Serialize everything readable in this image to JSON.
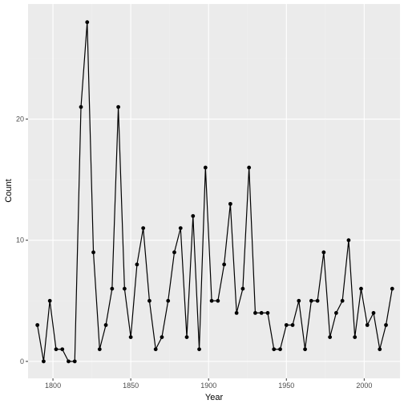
{
  "chart_data": {
    "type": "line",
    "xlabel": "Year",
    "ylabel": "Count",
    "xlim": [
      1784,
      2023
    ],
    "ylim": [
      -1.4,
      29.5
    ],
    "x_ticks": [
      1800,
      1850,
      1900,
      1950,
      2000
    ],
    "y_ticks": [
      0,
      10,
      20
    ],
    "grid": true,
    "legend": "none",
    "colors": {
      "panel": "#ebebeb",
      "grid_major": "#ffffff",
      "grid_minor": "#f2f2f2",
      "line": "#000000",
      "point": "#000000"
    },
    "series": [
      {
        "x": [
          1790,
          1794,
          1798,
          1802,
          1806,
          1810,
          1814,
          1818,
          1822,
          1826,
          1830,
          1834,
          1838,
          1842,
          1846,
          1850,
          1854,
          1858,
          1862,
          1866,
          1870,
          1874,
          1878,
          1882,
          1886,
          1890,
          1894,
          1898,
          1902,
          1906,
          1910,
          1914,
          1918,
          1922,
          1926,
          1930,
          1934,
          1938,
          1942,
          1946,
          1950,
          1954,
          1958,
          1962,
          1966,
          1970,
          1974,
          1978,
          1982,
          1986,
          1990,
          1994,
          1998,
          2002,
          2006,
          2010,
          2014,
          2018
        ],
        "values": [
          3,
          0,
          5,
          1,
          1,
          0,
          0,
          21,
          28,
          9,
          1,
          3,
          6,
          21,
          6,
          2,
          8,
          11,
          5,
          1,
          2,
          5,
          9,
          11,
          2,
          12,
          1,
          16,
          5,
          5,
          8,
          13,
          4,
          6,
          16,
          4,
          4,
          4,
          1,
          1,
          3,
          3,
          5,
          1,
          5,
          5,
          9,
          2,
          4,
          5,
          10,
          2,
          6,
          3,
          4,
          1,
          3,
          6
        ]
      }
    ]
  }
}
